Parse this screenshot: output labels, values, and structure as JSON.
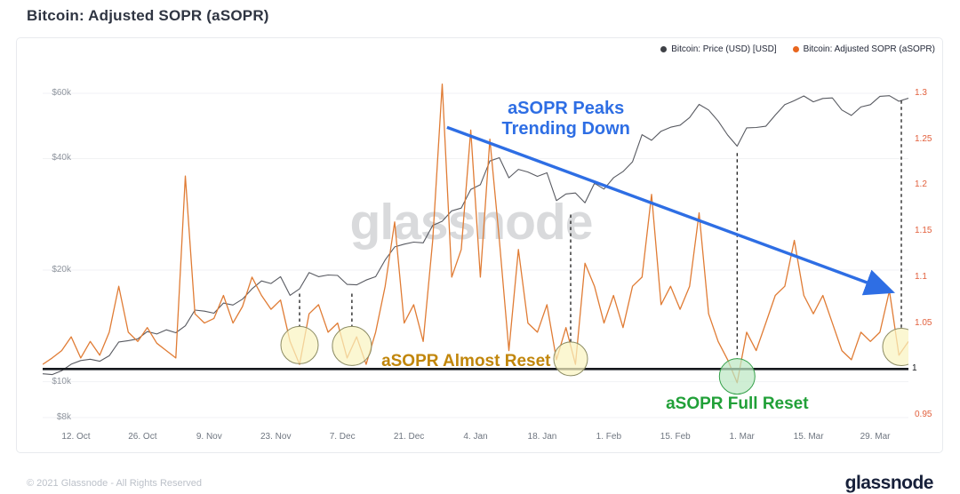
{
  "page": {
    "title": "Bitcoin: Adjusted SOPR (aSOPR)",
    "watermark": "glassnode",
    "footer_copyright": "© 2021 Glassnode - All Rights Reserved",
    "footer_logo": "glassnode"
  },
  "legend": {
    "items": [
      {
        "label": "Bitcoin: Price (USD) [USD]",
        "color": "#3f4147"
      },
      {
        "label": "Bitcoin: Adjusted SOPR (aSOPR)",
        "color": "#e8661e"
      }
    ]
  },
  "chart_data": {
    "type": "line",
    "title": "Bitcoin: Adjusted SOPR (aSOPR)",
    "x_axis": {
      "start_date": "2020-10-05",
      "domain_days": 182,
      "point_step_days": 2,
      "ticks": [
        {
          "day": 7,
          "label": "12. Oct"
        },
        {
          "day": 21,
          "label": "26. Oct"
        },
        {
          "day": 35,
          "label": "9. Nov"
        },
        {
          "day": 49,
          "label": "23. Nov"
        },
        {
          "day": 63,
          "label": "7. Dec"
        },
        {
          "day": 77,
          "label": "21. Dec"
        },
        {
          "day": 91,
          "label": "4. Jan"
        },
        {
          "day": 105,
          "label": "18. Jan"
        },
        {
          "day": 119,
          "label": "1. Feb"
        },
        {
          "day": 133,
          "label": "15. Feb"
        },
        {
          "day": 147,
          "label": "1. Mar"
        },
        {
          "day": 161,
          "label": "15. Mar"
        },
        {
          "day": 175,
          "label": "29. Mar"
        }
      ]
    },
    "price_axis": {
      "side": "left",
      "scale": "log",
      "grid": true,
      "ticks": [
        {
          "value": 60000,
          "label": "$60k"
        },
        {
          "value": 40000,
          "label": "$40k"
        },
        {
          "value": 20000,
          "label": "$20k"
        },
        {
          "value": 10000,
          "label": "$10k"
        },
        {
          "value": 8000,
          "label": "$8k"
        }
      ]
    },
    "sopr_axis": {
      "side": "right",
      "scale": "linear",
      "grid": false,
      "ticks": [
        {
          "value": 1.3,
          "label": "1.3"
        },
        {
          "value": 1.25,
          "label": "1.25"
        },
        {
          "value": 1.2,
          "label": "1.2"
        },
        {
          "value": 1.15,
          "label": "1.15"
        },
        {
          "value": 1.1,
          "label": "1.1"
        },
        {
          "value": 1.05,
          "label": "1.05"
        },
        {
          "value": 1,
          "label": "1"
        },
        {
          "value": 0.95,
          "label": "0.95"
        }
      ]
    },
    "baseline": {
      "value": 1,
      "label": "1",
      "color": "#15181d"
    },
    "series": [
      {
        "name": "Bitcoin: Price (USD) [USD]",
        "axis": "price",
        "color": "#585a61",
        "values_note": "USD, approx. every 2 days from 2020-10-05",
        "values": [
          10500,
          10450,
          10700,
          11150,
          11400,
          11500,
          11350,
          11750,
          12800,
          12900,
          13050,
          13650,
          13450,
          13800,
          13550,
          14150,
          15600,
          15500,
          15300,
          16300,
          16100,
          16700,
          17800,
          18700,
          18400,
          19200,
          17100,
          17800,
          19700,
          19200,
          19400,
          19350,
          18300,
          18250,
          18800,
          19200,
          21300,
          23100,
          23500,
          23800,
          23700,
          26400,
          27100,
          28900,
          29400,
          33000,
          34000,
          39400,
          40200,
          35500,
          37400,
          36800,
          35800,
          36600,
          30800,
          32100,
          32300,
          30400,
          34300,
          33100,
          35500,
          36900,
          39200,
          46400,
          44800,
          47400,
          48600,
          49200,
          51600,
          56000,
          54100,
          50500,
          46300,
          43200,
          48400,
          48500,
          48900,
          52400,
          55900,
          57300,
          59000,
          56900,
          58100,
          58300,
          54100,
          52300,
          55100,
          55900,
          58900,
          59100,
          57100,
          58200
        ]
      },
      {
        "name": "Bitcoin: Adjusted SOPR (aSOPR)",
        "axis": "sopr",
        "color": "#e07c35",
        "values_note": "ratio, approx. every 2 days from 2020-10-05",
        "values": [
          1.005,
          1.012,
          1.02,
          1.035,
          1.012,
          1.03,
          1.015,
          1.04,
          1.09,
          1.04,
          1.03,
          1.045,
          1.028,
          1.02,
          1.012,
          1.21,
          1.06,
          1.05,
          1.055,
          1.08,
          1.05,
          1.068,
          1.1,
          1.08,
          1.065,
          1.075,
          1.03,
          1.005,
          1.06,
          1.07,
          1.04,
          1.05,
          1.012,
          1.035,
          1.005,
          1.04,
          1.09,
          1.16,
          1.05,
          1.07,
          1.03,
          1.14,
          1.31,
          1.1,
          1.13,
          1.26,
          1.1,
          1.25,
          1.14,
          1.02,
          1.13,
          1.05,
          1.04,
          1.07,
          1.01,
          1.045,
          1.005,
          1.115,
          1.09,
          1.05,
          1.08,
          1.045,
          1.09,
          1.1,
          1.19,
          1.07,
          1.09,
          1.065,
          1.09,
          1.17,
          1.06,
          1.03,
          1.01,
          0.985,
          1.04,
          1.02,
          1.05,
          1.08,
          1.09,
          1.14,
          1.08,
          1.06,
          1.08,
          1.05,
          1.02,
          1.01,
          1.04,
          1.03,
          1.04,
          1.085,
          1.015,
          1.03
        ]
      }
    ],
    "annotations": {
      "trend_arrow": {
        "color": "#2e6ee4",
        "from": {
          "day": 85,
          "value": 1.263
        },
        "to": {
          "day": 178,
          "value": 1.085
        }
      },
      "texts": [
        {
          "id": "peaks",
          "text": "aSOPR Peaks\nTrending Down",
          "color": "#2e6ee4",
          "size": 20,
          "day": 110,
          "value": 1.272
        },
        {
          "id": "almost",
          "text": "aSOPR Almost Reset",
          "color": "#c1860b",
          "size": 19,
          "day": 89,
          "value": 1.008
        },
        {
          "id": "full",
          "text": "aSOPR Full Reset",
          "color": "#21a038",
          "size": 19,
          "day": 146,
          "value": 0.962
        }
      ],
      "circles": [
        {
          "day": 54,
          "value": 1.026,
          "r": 21,
          "fill": "#faf4c0",
          "stroke": "#8c8c64"
        },
        {
          "day": 65,
          "value": 1.025,
          "r": 22,
          "fill": "#faf4c0",
          "stroke": "#8c8c64"
        },
        {
          "day": 111,
          "value": 1.011,
          "r": 19,
          "fill": "#faf4c0",
          "stroke": "#8c8c64"
        },
        {
          "day": 146,
          "value": 0.992,
          "r": 20,
          "fill": "#bce8c3",
          "stroke": "#35a04a"
        },
        {
          "day": 180.5,
          "value": 1.024,
          "r": 21,
          "fill": "#faf4c0",
          "stroke": "#8c8c64"
        }
      ],
      "dashed_lines": [
        {
          "day": 54,
          "from_value": 1.082
        },
        {
          "day": 65,
          "from_value": 1.082
        },
        {
          "day": 111,
          "from_value": 1.168
        },
        {
          "day": 146,
          "from_value": 1.235
        },
        {
          "day": 180.5,
          "from_value": 1.292
        }
      ]
    }
  }
}
